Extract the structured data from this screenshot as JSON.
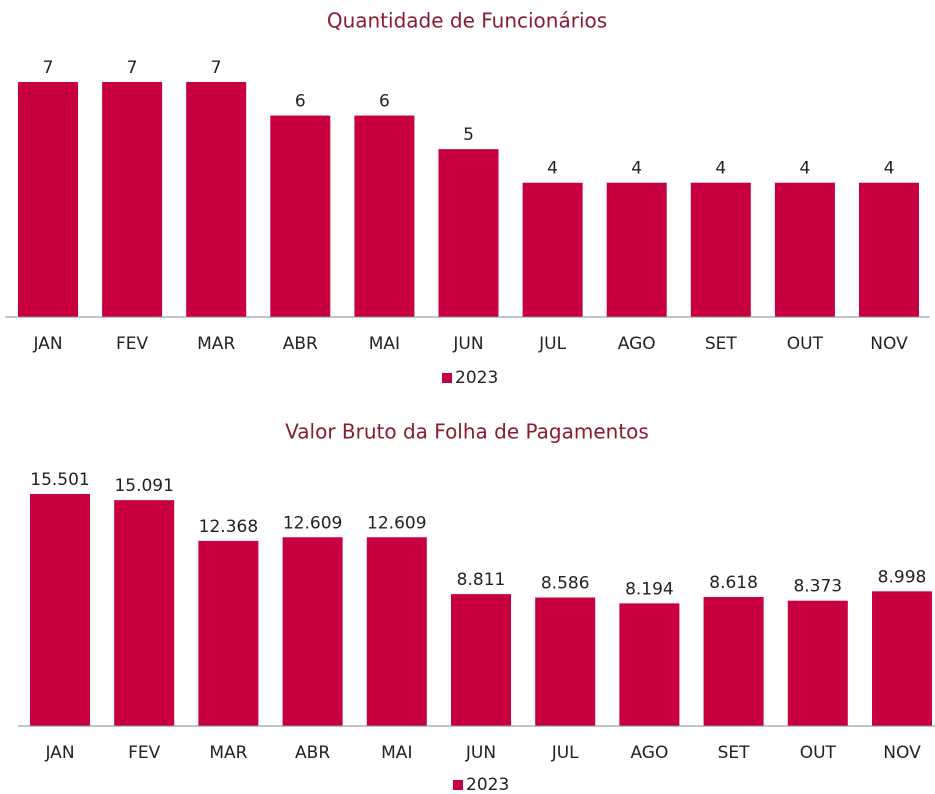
{
  "chart_data": [
    {
      "type": "bar",
      "title": "Quantidade de Funcionários",
      "categories": [
        "JAN",
        "FEV",
        "MAR",
        "ABR",
        "MAI",
        "JUN",
        "JUL",
        "AGO",
        "SET",
        "OUT",
        "NOV"
      ],
      "series": [
        {
          "name": "2023",
          "color": "#c8003f",
          "values": [
            7,
            7,
            7,
            6,
            6,
            5,
            4,
            4,
            4,
            4,
            4
          ]
        }
      ],
      "legend": "bottom"
    },
    {
      "type": "bar",
      "title": "Valor Bruto da Folha de Pagamentos",
      "categories": [
        "JAN",
        "FEV",
        "MAR",
        "ABR",
        "MAI",
        "JUN",
        "JUL",
        "AGO",
        "SET",
        "OUT",
        "NOV"
      ],
      "series": [
        {
          "name": "2023",
          "color": "#c8003f",
          "values": [
            15501,
            15091,
            12368,
            12609,
            12609,
            8811,
            8586,
            8194,
            8618,
            8373,
            8998
          ],
          "value_labels": [
            "15.501",
            "15.091",
            "12.368",
            "12.609",
            "12.609",
            "8.811",
            "8.586",
            "8.194",
            "8.618",
            "8.373",
            "8.998"
          ]
        }
      ],
      "legend": "bottom"
    }
  ]
}
